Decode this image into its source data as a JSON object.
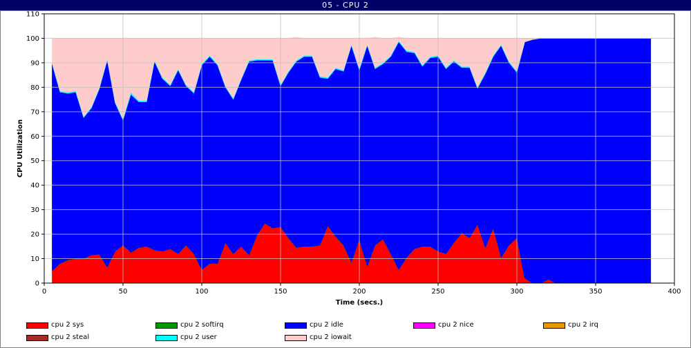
{
  "window": {
    "title": "05 - CPU 2"
  },
  "chart_data": {
    "type": "area",
    "stacked": true,
    "ylabel": "CPU Utilization",
    "xlabel": "Time (secs.)",
    "xlim": [
      0,
      400
    ],
    "ylim": [
      0,
      110
    ],
    "xticks": [
      0,
      50,
      100,
      150,
      200,
      250,
      300,
      350,
      400
    ],
    "yticks": [
      0,
      10,
      20,
      30,
      40,
      50,
      60,
      70,
      80,
      90,
      100,
      110
    ],
    "grid": true,
    "legend_position": "bottom",
    "x": [
      5,
      10,
      15,
      20,
      25,
      30,
      35,
      40,
      45,
      50,
      55,
      60,
      65,
      70,
      75,
      80,
      85,
      90,
      95,
      100,
      105,
      110,
      115,
      120,
      125,
      130,
      135,
      140,
      145,
      150,
      155,
      160,
      165,
      170,
      175,
      180,
      185,
      190,
      195,
      200,
      205,
      210,
      215,
      220,
      225,
      230,
      235,
      240,
      245,
      250,
      255,
      260,
      265,
      270,
      275,
      280,
      285,
      290,
      295,
      300,
      305,
      310,
      315,
      320,
      325,
      330,
      335,
      340,
      345,
      350,
      355,
      360,
      365,
      370,
      375,
      380,
      385
    ],
    "series": [
      {
        "name": "cpu 2 sys",
        "color": "#ff0000",
        "values": [
          5,
          8,
          9.5,
          10,
          10,
          11.5,
          11.8,
          6.5,
          13,
          15.5,
          12.5,
          14.5,
          15,
          13.5,
          13,
          14,
          12,
          15.5,
          12,
          5.5,
          8,
          8,
          16.5,
          12,
          15,
          11.5,
          19.5,
          24.5,
          22.5,
          23,
          18.5,
          14.5,
          15,
          15,
          15.5,
          23.5,
          19,
          15.5,
          8.5,
          18,
          7,
          15.5,
          18,
          12,
          5.5,
          10.5,
          14,
          15,
          15,
          13,
          12,
          16.5,
          20.5,
          18.5,
          24,
          14.5,
          22.5,
          10.5,
          15.5,
          18.5,
          2,
          0,
          0,
          1.5,
          0,
          0,
          0,
          0,
          0,
          0,
          0,
          0,
          0,
          0,
          0,
          0,
          0
        ]
      },
      {
        "name": "cpu 2 softirq",
        "color": "#009900",
        "values": [
          0,
          0,
          0,
          0,
          0,
          0,
          0,
          0,
          0,
          0,
          0,
          0,
          0,
          0,
          0,
          0,
          0,
          0,
          0,
          0,
          0,
          0,
          0,
          0,
          0,
          0,
          0,
          0,
          0,
          0,
          0,
          0,
          0,
          0,
          0,
          0,
          0,
          0,
          0,
          0,
          0,
          0,
          0,
          0,
          0,
          0,
          0,
          0,
          0,
          0,
          0,
          0,
          0,
          0,
          0,
          0,
          0,
          0,
          0,
          0,
          0,
          0,
          0,
          0,
          0,
          0,
          0,
          0,
          0,
          0,
          0,
          0,
          0,
          0,
          0,
          0,
          0
        ]
      },
      {
        "name": "cpu 2 idle",
        "color": "#0000ff",
        "values": [
          84.5,
          70,
          68,
          68,
          57.5,
          60,
          67.5,
          84.5,
          60.5,
          51,
          64.5,
          59.5,
          59,
          77,
          70.5,
          66.5,
          75,
          65,
          65.5,
          83.5,
          84.5,
          81,
          63.5,
          63,
          68,
          79,
          71.5,
          66.5,
          68.5,
          57.5,
          67.5,
          76,
          77.5,
          77.5,
          68.5,
          60,
          68.5,
          71,
          88.5,
          69,
          90,
          72,
          71.5,
          80.5,
          93,
          84,
          80,
          73.5,
          77,
          79.5,
          75.5,
          74,
          67.5,
          69.5,
          55.5,
          71,
          70,
          86.5,
          74.5,
          67.5,
          96.5,
          99.5,
          100,
          98.5,
          100,
          100,
          100,
          100,
          100,
          100,
          100,
          100,
          100,
          100,
          100,
          100,
          100
        ]
      },
      {
        "name": "cpu 2 nice",
        "color": "#ff00ff",
        "values": [
          0,
          0,
          0,
          0,
          0,
          0,
          0,
          0,
          0,
          0,
          0,
          0,
          0,
          0,
          0,
          0,
          0,
          0,
          0,
          0,
          0,
          0,
          0,
          0,
          0,
          0,
          0,
          0,
          0,
          0,
          0,
          0,
          0,
          0,
          0,
          0,
          0,
          0,
          0,
          0,
          0,
          0,
          0,
          0,
          0,
          0,
          0,
          0,
          0,
          0,
          0,
          0,
          0,
          0,
          0,
          0,
          0,
          0,
          0,
          0,
          0,
          0,
          0,
          0,
          0,
          0,
          0,
          0,
          0,
          0,
          0,
          0,
          0,
          0,
          0,
          0,
          0
        ]
      },
      {
        "name": "cpu 2 irq",
        "color": "#e69900",
        "values": [
          0,
          0,
          0,
          0,
          0,
          0,
          0,
          0,
          0,
          0,
          0,
          0,
          0,
          0,
          0,
          0,
          0,
          0,
          0,
          0,
          0,
          0,
          0,
          0,
          0,
          0,
          0,
          0,
          0,
          0,
          0,
          0,
          0,
          0,
          0,
          0,
          0,
          0,
          0,
          0,
          0,
          0,
          0,
          0,
          0,
          0,
          0,
          0,
          0,
          0,
          0,
          0,
          0,
          0,
          0,
          0,
          0,
          0,
          0,
          0,
          0,
          0,
          0,
          0,
          0,
          0,
          0,
          0,
          0,
          0,
          0,
          0,
          0,
          0,
          0,
          0,
          0
        ]
      },
      {
        "name": "cpu 2 steal",
        "color": "#a52a2a",
        "values": [
          0,
          0,
          0,
          0,
          0,
          0,
          0,
          0,
          0,
          0,
          0,
          0,
          0,
          0,
          0,
          0,
          0,
          0,
          0,
          0,
          0,
          0,
          0,
          0,
          0,
          0,
          0,
          0,
          0,
          0,
          0,
          0,
          0,
          0,
          0,
          0,
          0,
          0,
          0,
          0,
          0,
          0,
          0,
          0,
          0,
          0,
          0,
          0,
          0,
          0,
          0,
          0,
          0,
          0,
          0,
          0,
          0,
          0,
          0,
          0,
          0,
          0,
          0,
          0,
          0,
          0,
          0,
          0,
          0,
          0,
          0,
          0,
          0,
          0,
          0,
          0,
          0
        ]
      },
      {
        "name": "cpu 2 user",
        "color": "#00ffff",
        "values": [
          0.5,
          0.5,
          0.5,
          0.5,
          0.5,
          0.5,
          0.5,
          0.5,
          0.5,
          0.5,
          1,
          0.5,
          0.5,
          0.5,
          0.5,
          0.5,
          0.5,
          0.5,
          0.5,
          0.5,
          0.5,
          0.5,
          0.5,
          0.5,
          0.5,
          0.5,
          0.5,
          0.5,
          0.5,
          0.5,
          0.5,
          0.5,
          0.5,
          0.5,
          0.5,
          0.5,
          0.5,
          0.5,
          0.5,
          0.5,
          0.5,
          0.5,
          0.5,
          0.5,
          0.5,
          0.5,
          0.5,
          0.5,
          0.5,
          0.5,
          0.5,
          0.5,
          0.5,
          0.5,
          0.5,
          0.5,
          0.5,
          0.5,
          0.5,
          0.5,
          0,
          0,
          0,
          0,
          0,
          0,
          0,
          0,
          0,
          0,
          0,
          0,
          0,
          0,
          0,
          0,
          0
        ]
      },
      {
        "name": "cpu 2 iowait",
        "color": "#ffcccc",
        "values": [
          10,
          21.5,
          22,
          21.5,
          32,
          28,
          20.2,
          8.5,
          26,
          33,
          22,
          25.5,
          25.5,
          9,
          16,
          19,
          12.5,
          19,
          22,
          10.5,
          7,
          10.5,
          19.5,
          24.5,
          16.5,
          9,
          8.5,
          8.5,
          8.5,
          19,
          13.5,
          9.5,
          7,
          7,
          15.5,
          16,
          12,
          13,
          2.5,
          12.5,
          2.5,
          12.5,
          10,
          7,
          1.5,
          5,
          5.5,
          11,
          7.5,
          7,
          12,
          9,
          11.5,
          11.5,
          20,
          14,
          7,
          2.5,
          9.5,
          13.5,
          1.5,
          0.5,
          0,
          0,
          0,
          0,
          0,
          0,
          0,
          0,
          0,
          0,
          0,
          0,
          0,
          0,
          0
        ]
      }
    ],
    "legend": [
      {
        "label": "cpu 2 sys",
        "color": "#ff0000"
      },
      {
        "label": "cpu 2 softirq",
        "color": "#009900"
      },
      {
        "label": "cpu 2 idle",
        "color": "#0000ff"
      },
      {
        "label": "cpu 2 nice",
        "color": "#ff00ff"
      },
      {
        "label": "cpu 2 irq",
        "color": "#e69900"
      },
      {
        "label": "cpu 2 steal",
        "color": "#a52a2a"
      },
      {
        "label": "cpu 2 user",
        "color": "#00ffff"
      },
      {
        "label": "cpu 2 iowait",
        "color": "#ffcccc"
      }
    ]
  }
}
